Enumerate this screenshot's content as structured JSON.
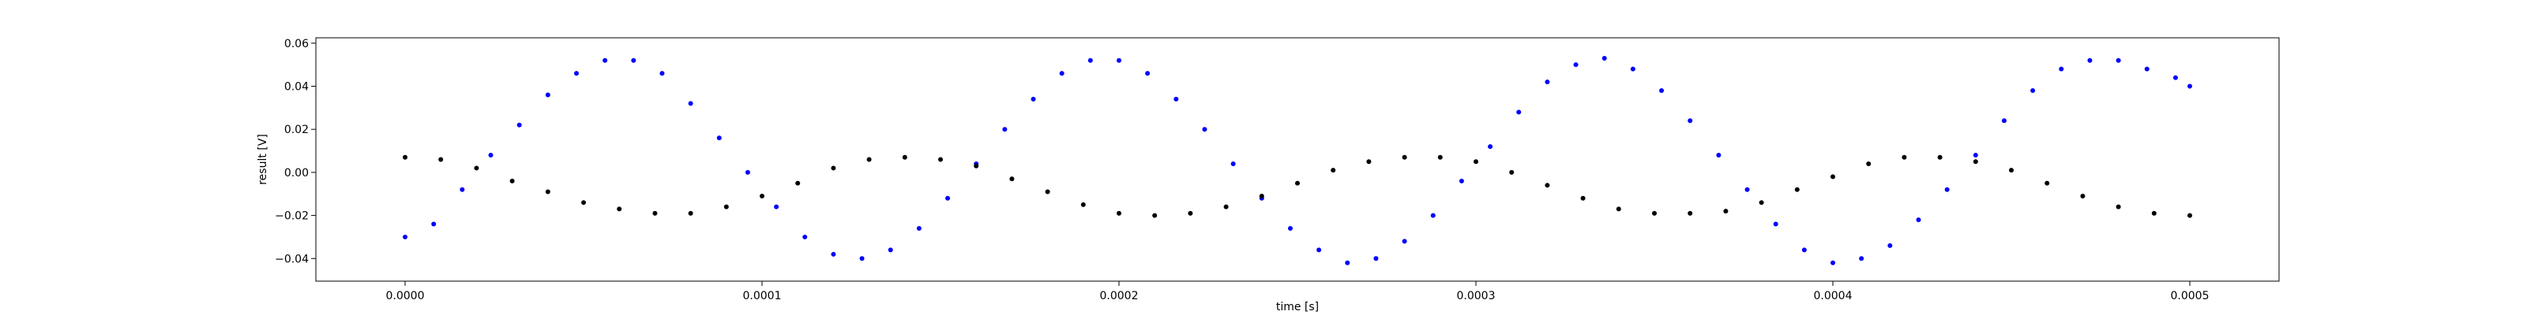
{
  "chart_data": {
    "type": "scatter",
    "title": "",
    "xlabel": "time [s]",
    "ylabel": "result [V]",
    "xlim": [
      -2.5e-05,
      0.000525
    ],
    "ylim": [
      -0.0505,
      0.0625
    ],
    "grid": false,
    "xticks": [
      0.0,
      0.0001,
      0.0002,
      0.0003,
      0.0004,
      0.0005
    ],
    "xtick_labels": [
      "0.0000",
      "0.0001",
      "0.0002",
      "0.0003",
      "0.0004",
      "0.0005"
    ],
    "yticks": [
      -0.04,
      -0.02,
      0.0,
      0.02,
      0.04,
      0.06
    ],
    "ytick_labels": [
      "−0.04",
      "−0.02",
      "0.00",
      "0.02",
      "0.04",
      "0.06"
    ],
    "series": [
      {
        "color": "#0000ff",
        "marker": "point",
        "x": [
          0.0,
          8e-06,
          1.6e-05,
          2.4e-05,
          3.2e-05,
          4e-05,
          4.8e-05,
          5.6e-05,
          6.4e-05,
          7.2e-05,
          8e-05,
          8.8e-05,
          9.6e-05,
          0.000104,
          0.000112,
          0.00012,
          0.000128,
          0.000136,
          0.000144,
          0.000152,
          0.00016,
          0.000168,
          0.000176,
          0.000184,
          0.000192,
          0.0002,
          0.000208,
          0.000216,
          0.000224,
          0.000232,
          0.00024,
          0.000248,
          0.000256,
          0.000264,
          0.000272,
          0.00028,
          0.000288,
          0.000296,
          0.000304,
          0.000312,
          0.00032,
          0.000328,
          0.000336,
          0.000344,
          0.000352,
          0.00036,
          0.000368,
          0.000376,
          0.000384,
          0.000392,
          0.0004,
          0.000408,
          0.000416,
          0.000424,
          0.000432,
          0.00044,
          0.000448,
          0.000456,
          0.000464,
          0.000472,
          0.00048,
          0.000488,
          0.000496,
          0.0005
        ],
        "y": [
          -0.03,
          -0.024,
          -0.008,
          0.008,
          0.022,
          0.036,
          0.046,
          0.052,
          0.052,
          0.046,
          0.032,
          0.016,
          0.0,
          -0.016,
          -0.03,
          -0.038,
          -0.04,
          -0.036,
          -0.026,
          -0.012,
          0.004,
          0.02,
          0.034,
          0.046,
          0.052,
          0.052,
          0.046,
          0.034,
          0.02,
          0.004,
          -0.012,
          -0.026,
          -0.036,
          -0.042,
          -0.04,
          -0.032,
          -0.02,
          -0.004,
          0.012,
          0.028,
          0.042,
          0.05,
          0.053,
          0.048,
          0.038,
          0.024,
          0.008,
          -0.008,
          -0.024,
          -0.036,
          -0.042,
          -0.04,
          -0.034,
          -0.022,
          -0.008,
          0.008,
          0.024,
          0.038,
          0.048,
          0.052,
          0.052,
          0.048,
          0.044,
          0.04
        ]
      },
      {
        "color": "#000000",
        "marker": "point",
        "x": [
          0.0,
          1e-05,
          2e-05,
          3e-05,
          4e-05,
          5e-05,
          6e-05,
          7e-05,
          8e-05,
          9e-05,
          0.0001,
          0.00011,
          0.00012,
          0.00013,
          0.00014,
          0.00015,
          0.00016,
          0.00017,
          0.00018,
          0.00019,
          0.0002,
          0.00021,
          0.00022,
          0.00023,
          0.00024,
          0.00025,
          0.00026,
          0.00027,
          0.00028,
          0.00029,
          0.0003,
          0.00031,
          0.00032,
          0.00033,
          0.00034,
          0.00035,
          0.00036,
          0.00037,
          0.00038,
          0.00039,
          0.0004,
          0.00041,
          0.00042,
          0.00043,
          0.00044,
          0.00045,
          0.00046,
          0.00047,
          0.00048,
          0.00049,
          0.0005
        ],
        "y": [
          0.007,
          0.006,
          0.002,
          -0.004,
          -0.009,
          -0.014,
          -0.017,
          -0.019,
          -0.019,
          -0.016,
          -0.011,
          -0.005,
          0.002,
          0.006,
          0.007,
          0.006,
          0.003,
          -0.003,
          -0.009,
          -0.015,
          -0.019,
          -0.02,
          -0.019,
          -0.016,
          -0.011,
          -0.005,
          0.001,
          0.005,
          0.007,
          0.007,
          0.005,
          0.0,
          -0.006,
          -0.012,
          -0.017,
          -0.019,
          -0.019,
          -0.018,
          -0.014,
          -0.008,
          -0.002,
          0.004,
          0.007,
          0.007,
          0.005,
          0.001,
          -0.005,
          -0.011,
          -0.016,
          -0.019,
          -0.02
        ]
      }
    ]
  }
}
